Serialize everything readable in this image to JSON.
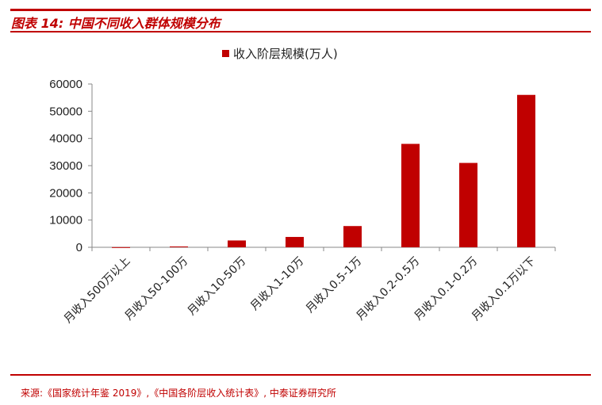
{
  "figure": {
    "title": "图表 14:  中国不同收入群体规模分布",
    "source": "来源:《国家统计年鉴 2019》,《中国各阶层收入统计表》, 中泰证券研究所"
  },
  "chart_data": {
    "type": "bar",
    "categories": [
      "月收入500万以上",
      "月收入50-100万",
      "月收入10-50万",
      "月收入1-10万",
      "月收入0.5-1万",
      "月收入0.2-0.5万",
      "月收入0.1-0.2万",
      "月收入0.1万以下"
    ],
    "series": [
      {
        "name": "收入阶层规模(万人)",
        "values": [
          50,
          300,
          2500,
          3800,
          7800,
          38000,
          31000,
          56000
        ],
        "color": "#c00000"
      }
    ],
    "yticks": [
      0,
      10000,
      20000,
      30000,
      40000,
      50000,
      60000
    ],
    "ylim": [
      0,
      60000
    ],
    "legend_position": "top-center",
    "grid": false
  }
}
